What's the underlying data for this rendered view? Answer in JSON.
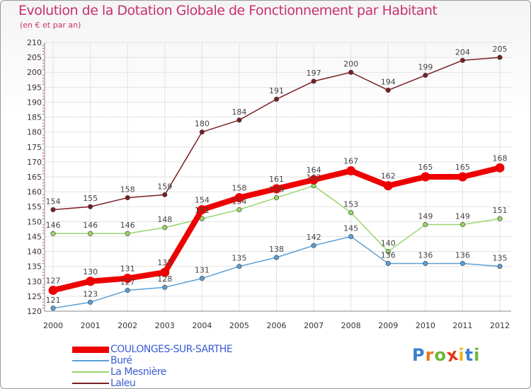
{
  "title": "Evolution de la Dotation Globale de Fonctionnement par Habitant",
  "subtitle": "(en € et par an)",
  "colors": {
    "title": "#c8316e",
    "grid": "#e2e2e2",
    "axis": "#888888",
    "legend_text": "#3b5bd6"
  },
  "brand": {
    "name": "Proxiti",
    "letter_colors": [
      "#3a7fd0",
      "#e8781e",
      "#6cb83a",
      "#e0361c",
      "#f0b41a",
      "#3a7fd0",
      "#6cb83a"
    ]
  },
  "chart_data": {
    "type": "line",
    "title": "Evolution de la Dotation Globale de Fonctionnement par Habitant",
    "subtitle": "(en € et par an)",
    "xlabel": "",
    "ylabel": "",
    "x": [
      "2000",
      "2001",
      "2002",
      "2003",
      "2004",
      "2005",
      "2006",
      "2007",
      "2008",
      "2009",
      "2010",
      "2011",
      "2012"
    ],
    "ylim": [
      120,
      210
    ],
    "ytick_step": 5,
    "grid": true,
    "legend_position": "bottom-left",
    "series": [
      {
        "name": "Laleu",
        "color": "#7a1f24",
        "emphasis": false,
        "values": [
          154,
          155,
          158,
          159,
          180,
          184,
          191,
          197,
          200,
          194,
          199,
          204,
          205
        ]
      },
      {
        "name": "La Mesnière",
        "color": "#97d66a",
        "emphasis": false,
        "values": [
          146,
          146,
          146,
          148,
          151,
          154,
          158,
          162,
          153,
          140,
          149,
          149,
          151
        ]
      },
      {
        "name": "Buré",
        "color": "#5b9fd6",
        "emphasis": false,
        "values": [
          121,
          123,
          127,
          128,
          131,
          135,
          138,
          142,
          145,
          136,
          136,
          136,
          135
        ]
      },
      {
        "name": "COULONGES-SUR-SARTHE",
        "color": "#ee0000",
        "emphasis": true,
        "values": [
          127,
          130,
          131,
          133,
          154,
          158,
          161,
          164,
          167,
          162,
          165,
          165,
          168
        ]
      }
    ],
    "legend_order": [
      "COULONGES-SUR-SARTHE",
      "Buré",
      "La Mesnière",
      "Laleu"
    ]
  }
}
